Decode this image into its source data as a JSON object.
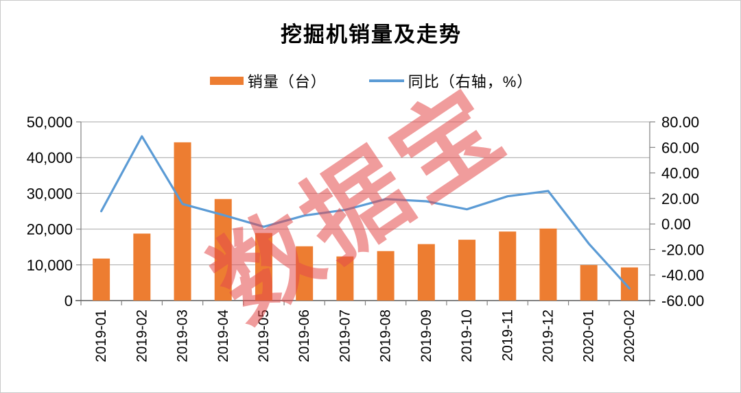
{
  "title": "挖掘机销量及走势",
  "watermark": "数据宝",
  "legend": [
    {
      "label": "销量（台）",
      "marker": "bar-swatch",
      "color": "#ED7D31"
    },
    {
      "label": "同比（右轴，%）",
      "marker": "line-swatch",
      "color": "#5B9BD5"
    }
  ],
  "colors": {
    "bar": "#ED7D31",
    "line": "#5B9BD5",
    "grid": "#A6A6A6",
    "axis": "#808080",
    "x_axis": "#595959",
    "text": "#000000",
    "watermark": "#E44A4A"
  },
  "chart_data": {
    "type": "combo_bar_line",
    "title": "挖掘机销量及走势",
    "categories": [
      "2019-01",
      "2019-02",
      "2019-03",
      "2019-04",
      "2019-05",
      "2019-06",
      "2019-07",
      "2019-08",
      "2019-09",
      "2019-10",
      "2019-11",
      "2019-12",
      "2020-01",
      "2020-02"
    ],
    "series": [
      {
        "name": "销量（台）",
        "type": "bar",
        "axis": "left",
        "color": "#ED7D31",
        "values": [
          11756,
          18745,
          44278,
          28410,
          18897,
          15188,
          12346,
          13843,
          15799,
          17027,
          19316,
          20155,
          9942,
          9280
        ]
      },
      {
        "name": "同比（右轴，%）",
        "type": "line",
        "axis": "right",
        "color": "#5B9BD5",
        "values": [
          10.0,
          68.7,
          15.7,
          7.0,
          -2.2,
          6.6,
          11.0,
          19.5,
          17.8,
          11.5,
          21.7,
          25.8,
          -15.4,
          -50.5
        ]
      }
    ],
    "left_axis": {
      "min": 0,
      "max": 50000,
      "step": 10000,
      "labels": [
        "0",
        "10,000",
        "20,000",
        "30,000",
        "40,000",
        "50,000"
      ]
    },
    "right_axis": {
      "min": -60,
      "max": 80,
      "step": 20,
      "labels": [
        "-60.00",
        "-40.00",
        "-20.00",
        "0.00",
        "20.00",
        "40.00",
        "60.00",
        "80.00"
      ]
    },
    "grid": true,
    "legend_position": "top"
  }
}
